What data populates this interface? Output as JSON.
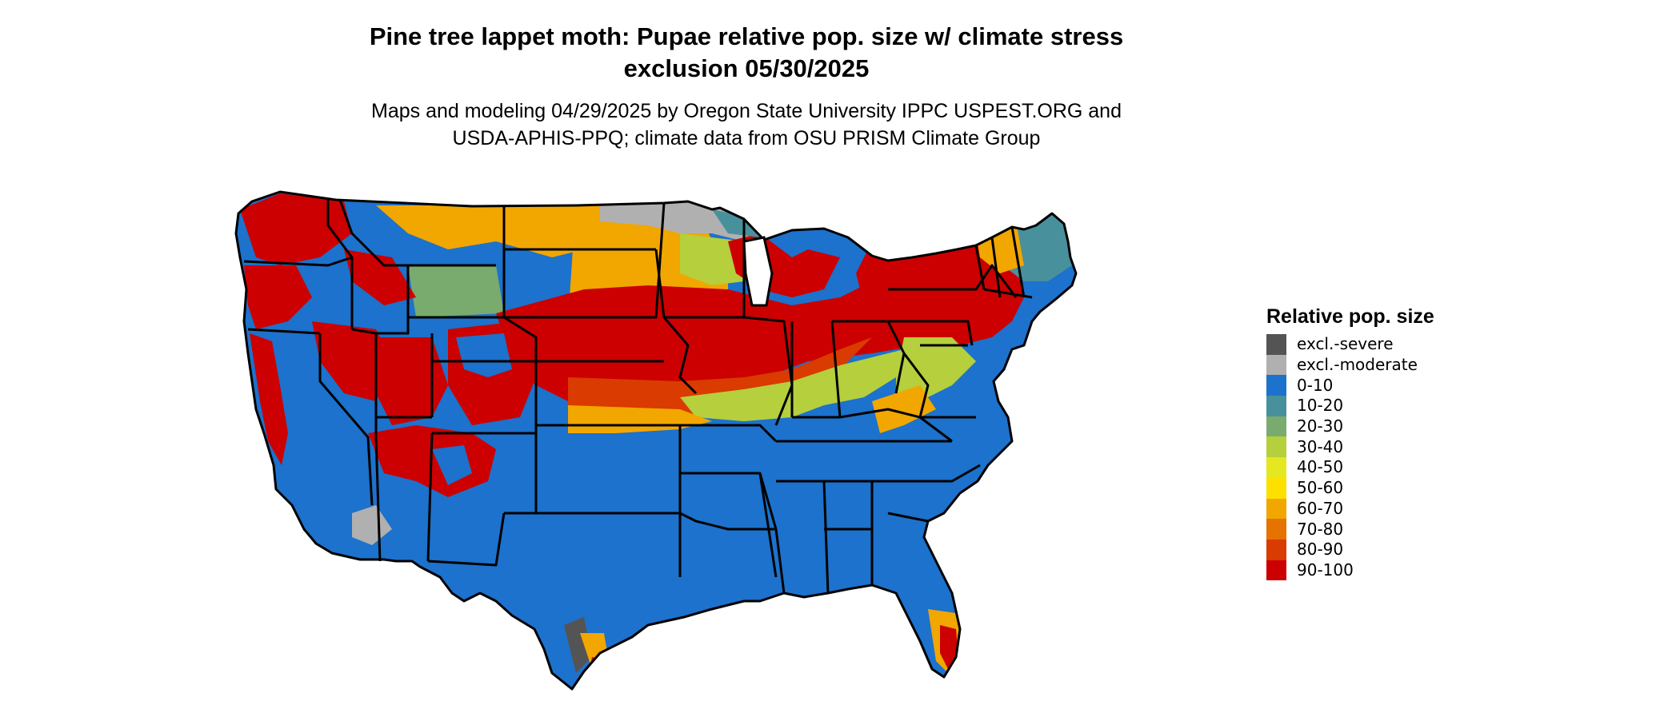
{
  "title": {
    "line1": "Pine tree lappet moth: Pupae relative pop. size w/ climate stress",
    "line2": "exclusion 05/30/2025"
  },
  "subtitle": {
    "line1": "Maps and modeling 04/29/2025 by Oregon State University IPPC USPEST.ORG and",
    "line2": "USDA-APHIS-PPQ; climate data from OSU PRISM Climate Group"
  },
  "map": {
    "subject": "contiguous-us-states",
    "border_color": "#000000"
  },
  "legend": {
    "title": "Relative pop. size",
    "items": [
      {
        "label": "excl.-severe",
        "color": "#545454"
      },
      {
        "label": "excl.-moderate",
        "color": "#b0b0b0"
      },
      {
        "label": "0-10",
        "color": "#1c72cc"
      },
      {
        "label": "10-20",
        "color": "#48909c"
      },
      {
        "label": "20-30",
        "color": "#7aab6e"
      },
      {
        "label": "30-40",
        "color": "#b5cf3d"
      },
      {
        "label": "40-50",
        "color": "#e5e820"
      },
      {
        "label": "50-60",
        "color": "#fde000"
      },
      {
        "label": "60-70",
        "color": "#f2a600"
      },
      {
        "label": "70-80",
        "color": "#e67300"
      },
      {
        "label": "80-90",
        "color": "#d93b00"
      },
      {
        "label": "90-100",
        "color": "#cc0000"
      }
    ]
  }
}
